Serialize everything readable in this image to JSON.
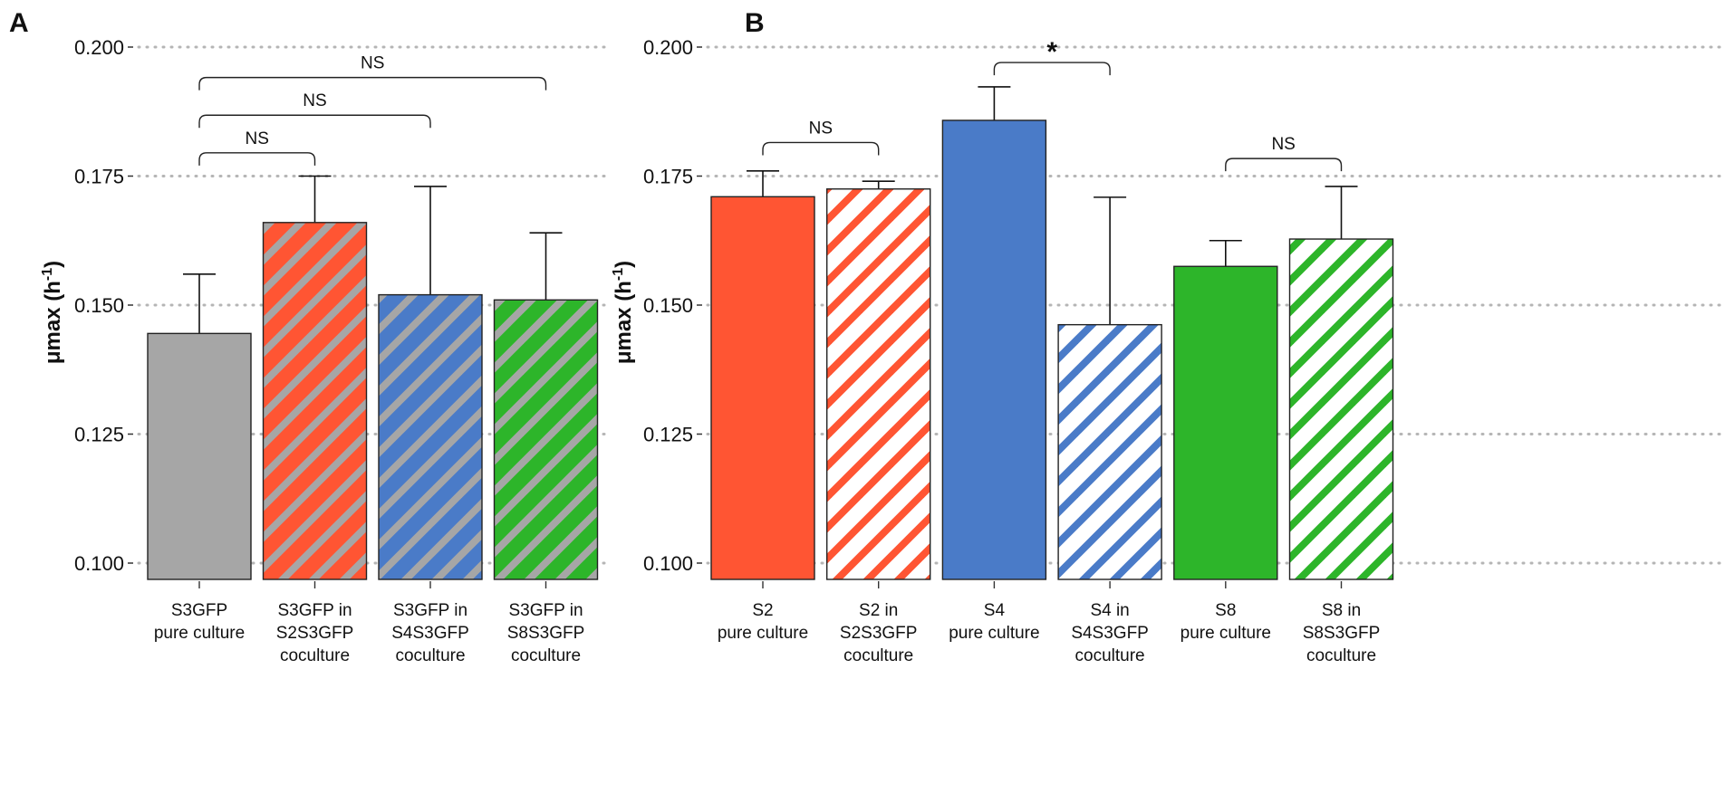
{
  "chart_data": [
    {
      "type": "bar",
      "panel": "A",
      "ylabel": "μmax (h",
      "ylabel_sup": "-1",
      "ylabel_close": ")",
      "ylim": [
        0.097,
        0.2
      ],
      "yticks": [
        0.1,
        0.125,
        0.15,
        0.175,
        0.2
      ],
      "ytick_labels": [
        "0.100",
        "0.125",
        "0.150",
        "0.175",
        "0.200"
      ],
      "grid": "horizontal dotted",
      "categories": [
        [
          "S3GFP",
          "pure culture"
        ],
        [
          "S3GFP in",
          "S2S3GFP",
          "coculture"
        ],
        [
          "S3GFP in",
          "S4S3GFP",
          "coculture"
        ],
        [
          "S3GFP in",
          "S8S3GFP",
          "coculture"
        ]
      ],
      "values": [
        0.1445,
        0.166,
        0.152,
        0.151
      ],
      "errors": [
        0.0115,
        0.009,
        0.021,
        0.013
      ],
      "fill_colors": [
        "#a6a6a6",
        "#ff5533",
        "#4a7bc8",
        "#2db52a"
      ],
      "hatched": [
        false,
        true,
        true,
        true
      ],
      "hatch_colors": [
        null,
        "#a6a6a6",
        "#a6a6a6",
        "#a6a6a6"
      ],
      "brackets": [
        {
          "from": 0,
          "to": 1,
          "label": "NS",
          "level": 0.1795
        },
        {
          "from": 0,
          "to": 2,
          "label": "NS",
          "level": 0.1868
        },
        {
          "from": 0,
          "to": 3,
          "label": "NS",
          "level": 0.1941
        }
      ]
    },
    {
      "type": "bar",
      "panel": "B",
      "ylabel": "μmax (h",
      "ylabel_sup": "-1",
      "ylabel_close": ")",
      "ylim": [
        0.097,
        0.2
      ],
      "yticks": [
        0.1,
        0.125,
        0.15,
        0.175,
        0.2
      ],
      "ytick_labels": [
        "0.100",
        "0.125",
        "0.150",
        "0.175",
        "0.200"
      ],
      "grid": "horizontal dotted",
      "categories": [
        [
          "S2",
          "pure culture"
        ],
        [
          "S2 in",
          "S2S3GFP",
          "coculture"
        ],
        [
          "S4",
          "pure culture"
        ],
        [
          "S4 in",
          "S4S3GFP",
          "coculture"
        ],
        [
          "S8",
          "pure culture"
        ],
        [
          "S8 in",
          "S8S3GFP",
          "coculture"
        ]
      ],
      "values": [
        0.171,
        0.1725,
        0.1858,
        0.1462,
        0.1575,
        0.1628
      ],
      "errors": [
        0.005,
        0.0015,
        0.0065,
        0.0247,
        0.005,
        0.0102
      ],
      "fill_colors": [
        "#ff5533",
        "#ffffff",
        "#4a7bc8",
        "#ffffff",
        "#2db52a",
        "#ffffff"
      ],
      "hatched": [
        false,
        true,
        false,
        true,
        false,
        true
      ],
      "hatch_colors": [
        null,
        "#ff5533",
        null,
        "#4a7bc8",
        null,
        "#2db52a"
      ],
      "brackets": [
        {
          "from": 0,
          "to": 1,
          "label": "NS",
          "level": 0.1815
        },
        {
          "from": 2,
          "to": 3,
          "label": "*",
          "level": 0.197
        },
        {
          "from": 4,
          "to": 5,
          "label": "NS",
          "level": 0.1784
        }
      ]
    }
  ]
}
